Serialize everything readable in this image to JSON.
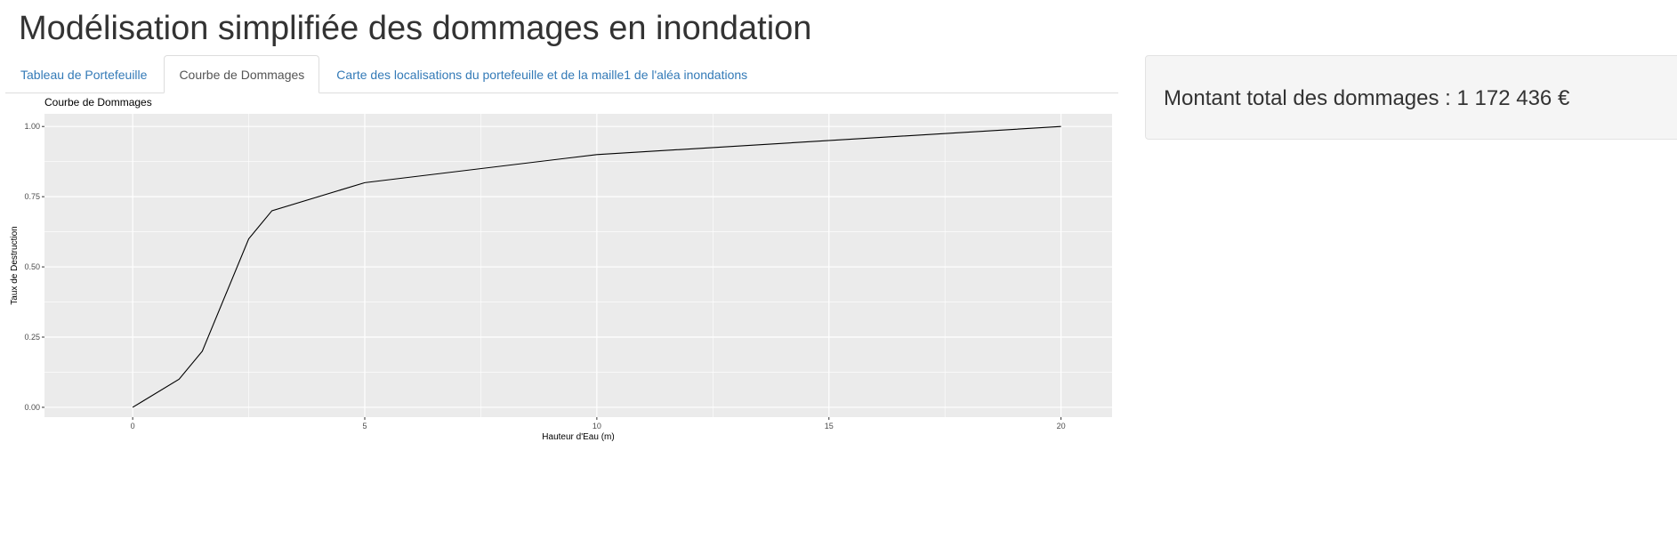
{
  "page": {
    "title": "Modélisation simplifiée des dommages en inondation"
  },
  "tabs": [
    {
      "label": "Tableau de Portefeuille",
      "active": false
    },
    {
      "label": "Courbe de Dommages",
      "active": true
    },
    {
      "label": "Carte des localisations du portefeuille et de la maille1 de l'aléa inondations",
      "active": false
    }
  ],
  "summary": {
    "total_label": "Montant total des dommages : 1 172 436 €"
  },
  "colors": {
    "panel_background": "#EBEBEB",
    "grid": "#FFFFFF",
    "line": "#000000",
    "link": "#337ab7"
  },
  "chart_data": {
    "type": "line",
    "title": "Courbe de Dommages",
    "xlabel": "Hauteur d'Eau (m)",
    "ylabel": "Taux de Destruction",
    "xlim": [
      -1.9,
      21.1
    ],
    "ylim": [
      -0.035,
      1.045
    ],
    "xticks": [
      0,
      5,
      10,
      15,
      20
    ],
    "xtick_labels": [
      "0",
      "5",
      "10",
      "15",
      "20"
    ],
    "yticks": [
      0,
      0.25,
      0.5,
      0.75,
      1
    ],
    "ytick_labels": [
      "0.00",
      "0.25",
      "0.50",
      "0.75",
      "1.00"
    ],
    "x_minor": [
      2.5,
      7.5,
      12.5,
      17.5
    ],
    "y_minor": [
      0.125,
      0.375,
      0.625,
      0.875
    ],
    "grid": true,
    "series": [
      {
        "x": [
          0,
          0.2,
          1,
          1.5,
          2.5,
          3,
          5,
          10,
          20
        ],
        "y": [
          0,
          0.02,
          0.1,
          0.2,
          0.6,
          0.7,
          0.8,
          0.9,
          1.0
        ]
      }
    ]
  }
}
